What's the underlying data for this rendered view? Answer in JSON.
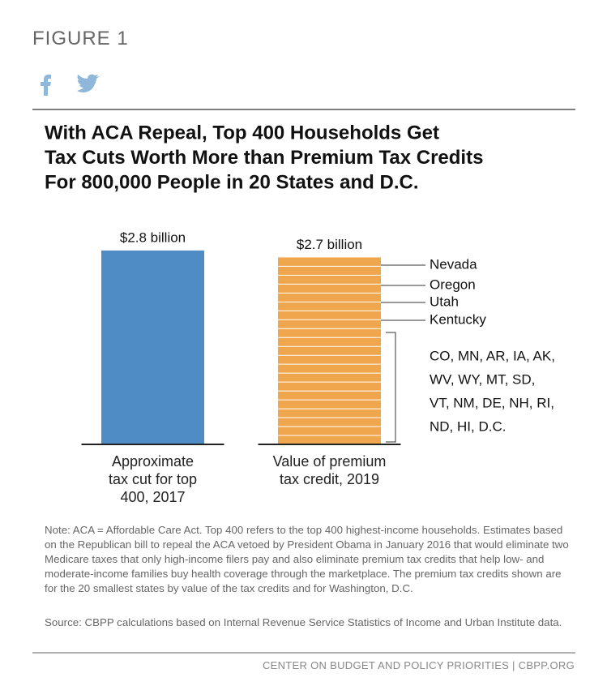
{
  "page": {
    "figure": "FIGURE 1",
    "note": "Note: ACA = Affordable Care Act.  Top 400 refers to the top 400 highest-income households. Estimates based on the Republican bill to repeal the ACA vetoed by President Obama in January 2016 that would eliminate two Medicare taxes that only high-income filers pay and also eliminate premium tax credits that help low- and moderate-income families buy health coverage through the marketplace. The premium tax credits shown are for the 20 smallest states by value of the tax credits and for Washington, D.C.",
    "source": "Source: CBPP calculations based on Internal Revenue Service Statistics of Income and Urban Institute data.",
    "footer": "CENTER ON BUDGET AND POLICY PRIORITIES | CBPP.ORG"
  },
  "chart_data": {
    "type": "bar",
    "title": [
      "With ACA Repeal, Top 400 Households Get",
      "Tax Cuts Worth More than Premium Tax Credits",
      "For 800,000 People in 20 States and D.C."
    ],
    "categories": [
      "Approximate tax cut for top 400, 2017",
      "Value of premium tax credit, 2019"
    ],
    "values": [
      2.8,
      2.7
    ],
    "value_labels": [
      "$2.8 billion",
      "$2.7 billion"
    ],
    "colors": [
      "#4f8bc4",
      "#f0a64c"
    ],
    "annotations": [
      "Nevada",
      "Oregon",
      "Utah",
      "Kentucky"
    ],
    "group_annotation": [
      "CO, MN, AR, IA, AK,",
      "WV, WY, MT, SD,",
      "VT, NM, DE, NH, RI,",
      "ND, HI, D.C."
    ]
  }
}
